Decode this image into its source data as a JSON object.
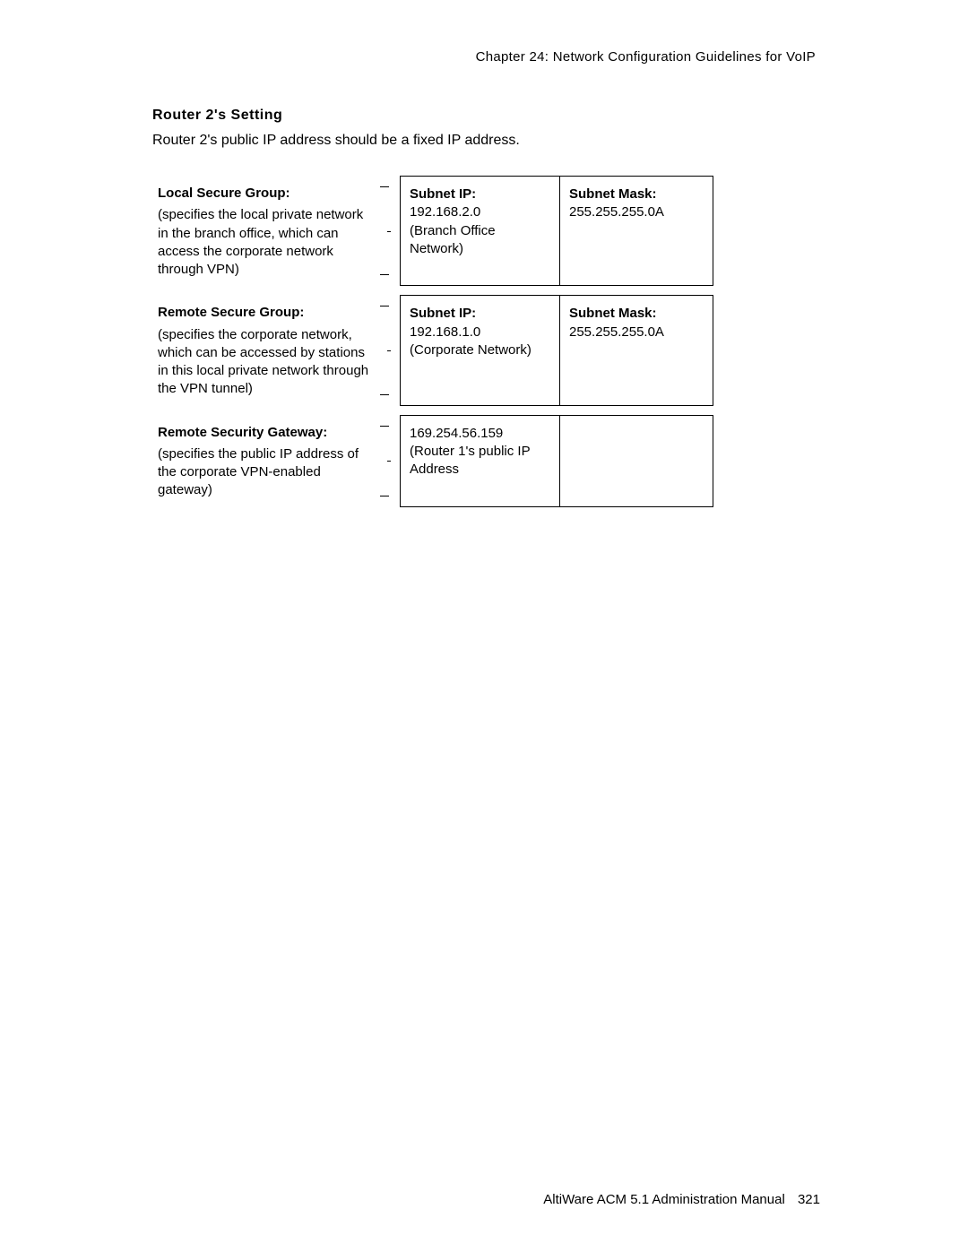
{
  "header": {
    "chapter_line": "Chapter 24:  Network Configuration Guidelines for VoIP"
  },
  "section": {
    "title": "Router 2's Setting",
    "subtitle": "Router 2's public IP address should be a fixed IP address."
  },
  "rows": [
    {
      "left_label": "Local Secure Group:",
      "left_desc": "(specifies the local private network in the branch office, which can access the corporate network through VPN)",
      "mid_label": "Subnet IP:",
      "mid_value": "192.168.2.0",
      "mid_note": "(Branch Office Network)",
      "right_label": "Subnet Mask:",
      "right_value": "255.255.255.0A"
    },
    {
      "left_label": "Remote Secure Group:",
      "left_desc": "(specifies the corporate network, which can be accessed by stations in this local private network through the VPN tunnel)",
      "mid_label": "Subnet IP:",
      "mid_value": "192.168.1.0",
      "mid_note": "(Corporate Network)",
      "right_label": "Subnet Mask:",
      "right_value": "255.255.255.0A"
    },
    {
      "left_label": "Remote Security Gateway:",
      "left_desc": "(specifies the public IP address of the corporate VPN-enabled gateway)",
      "mid_label": "",
      "mid_value": "169.254.56.159",
      "mid_note": "(Router 1's public IP Address",
      "right_label": "",
      "right_value": ""
    }
  ],
  "footer": {
    "manual": "AltiWare ACM 5.1 Administration Manual",
    "page": "321"
  }
}
